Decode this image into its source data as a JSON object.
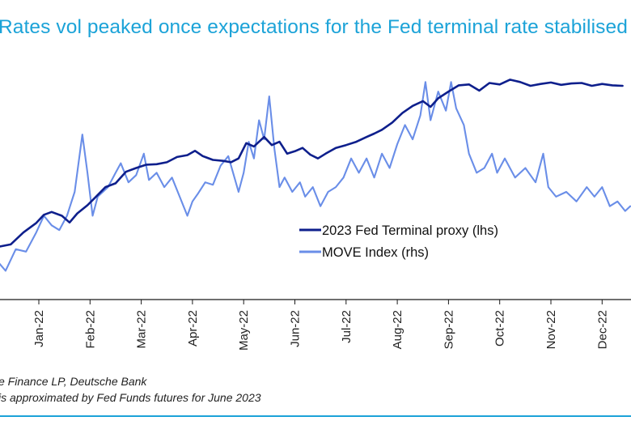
{
  "chart_data": {
    "type": "line",
    "title": "Rates vol peaked once expectations for the Fed terminal rate stabilised",
    "xlabel": "",
    "ylabel": "",
    "categories": [
      "Jan-22",
      "Feb-22",
      "Mar-22",
      "Apr-22",
      "May-22",
      "Jun-22",
      "Jul-22",
      "Aug-22",
      "Sep-22",
      "Oct-22",
      "Nov-22",
      "Dec-22"
    ],
    "x_range": [
      0,
      12.55
    ],
    "lhs_range": [
      0.5,
      5.5
    ],
    "rhs_range": [
      70,
      170
    ],
    "grid": false,
    "legend_position": "center-right",
    "series": [
      {
        "name": "2023 Fed Terminal proxy (lhs)",
        "axis": "lhs",
        "color": "#0e1f8c",
        "points": [
          [
            0.0,
            1.28
          ],
          [
            0.2,
            1.35
          ],
          [
            0.45,
            1.4
          ],
          [
            0.7,
            1.65
          ],
          [
            0.95,
            1.85
          ],
          [
            1.1,
            2.02
          ],
          [
            1.25,
            2.08
          ],
          [
            1.45,
            2.0
          ],
          [
            1.6,
            1.86
          ],
          [
            1.75,
            2.05
          ],
          [
            1.95,
            2.22
          ],
          [
            2.1,
            2.38
          ],
          [
            2.3,
            2.6
          ],
          [
            2.5,
            2.68
          ],
          [
            2.7,
            2.92
          ],
          [
            2.9,
            3.0
          ],
          [
            3.1,
            3.07
          ],
          [
            3.3,
            3.08
          ],
          [
            3.5,
            3.12
          ],
          [
            3.7,
            3.23
          ],
          [
            3.9,
            3.27
          ],
          [
            4.05,
            3.36
          ],
          [
            4.2,
            3.25
          ],
          [
            4.4,
            3.17
          ],
          [
            4.6,
            3.15
          ],
          [
            4.75,
            3.12
          ],
          [
            4.9,
            3.2
          ],
          [
            5.05,
            3.52
          ],
          [
            5.2,
            3.45
          ],
          [
            5.4,
            3.65
          ],
          [
            5.55,
            3.48
          ],
          [
            5.7,
            3.55
          ],
          [
            5.85,
            3.3
          ],
          [
            6.0,
            3.35
          ],
          [
            6.15,
            3.42
          ],
          [
            6.3,
            3.28
          ],
          [
            6.45,
            3.2
          ],
          [
            6.6,
            3.3
          ],
          [
            6.8,
            3.42
          ],
          [
            7.0,
            3.48
          ],
          [
            7.2,
            3.55
          ],
          [
            7.4,
            3.65
          ],
          [
            7.55,
            3.72
          ],
          [
            7.7,
            3.8
          ],
          [
            7.9,
            3.95
          ],
          [
            8.1,
            4.15
          ],
          [
            8.3,
            4.3
          ],
          [
            8.5,
            4.4
          ],
          [
            8.65,
            4.28
          ],
          [
            8.8,
            4.46
          ],
          [
            9.0,
            4.6
          ],
          [
            9.2,
            4.73
          ],
          [
            9.4,
            4.75
          ],
          [
            9.6,
            4.62
          ],
          [
            9.8,
            4.78
          ],
          [
            10.0,
            4.75
          ],
          [
            10.2,
            4.85
          ],
          [
            10.4,
            4.8
          ],
          [
            10.6,
            4.72
          ],
          [
            10.8,
            4.76
          ],
          [
            11.0,
            4.79
          ],
          [
            11.2,
            4.74
          ],
          [
            11.4,
            4.77
          ],
          [
            11.6,
            4.78
          ],
          [
            11.8,
            4.72
          ],
          [
            12.0,
            4.76
          ],
          [
            12.2,
            4.73
          ],
          [
            12.4,
            4.72
          ]
        ]
      },
      {
        "name": "MOVE Index (rhs)",
        "axis": "rhs",
        "color": "#6a8ee8",
        "points": [
          [
            0.0,
            78
          ],
          [
            0.15,
            82
          ],
          [
            0.35,
            77
          ],
          [
            0.55,
            86
          ],
          [
            0.75,
            85
          ],
          [
            0.95,
            93
          ],
          [
            1.1,
            100
          ],
          [
            1.25,
            96
          ],
          [
            1.4,
            94
          ],
          [
            1.55,
            100
          ],
          [
            1.7,
            110
          ],
          [
            1.85,
            134
          ],
          [
            1.95,
            118
          ],
          [
            2.05,
            100
          ],
          [
            2.15,
            108
          ],
          [
            2.35,
            112
          ],
          [
            2.5,
            118
          ],
          [
            2.6,
            122
          ],
          [
            2.75,
            114
          ],
          [
            2.9,
            117
          ],
          [
            3.05,
            126
          ],
          [
            3.15,
            115
          ],
          [
            3.3,
            118
          ],
          [
            3.45,
            112
          ],
          [
            3.6,
            116
          ],
          [
            3.75,
            108
          ],
          [
            3.9,
            100
          ],
          [
            4.0,
            106
          ],
          [
            4.1,
            109
          ],
          [
            4.25,
            114
          ],
          [
            4.4,
            113
          ],
          [
            4.55,
            121
          ],
          [
            4.7,
            125
          ],
          [
            4.9,
            110
          ],
          [
            5.0,
            118
          ],
          [
            5.1,
            131
          ],
          [
            5.2,
            124
          ],
          [
            5.3,
            140
          ],
          [
            5.4,
            132
          ],
          [
            5.5,
            150
          ],
          [
            5.6,
            128
          ],
          [
            5.7,
            112
          ],
          [
            5.8,
            116
          ],
          [
            5.95,
            110
          ],
          [
            6.1,
            114
          ],
          [
            6.2,
            108
          ],
          [
            6.35,
            112
          ],
          [
            6.5,
            104
          ],
          [
            6.65,
            110
          ],
          [
            6.8,
            112
          ],
          [
            6.95,
            116
          ],
          [
            7.1,
            124
          ],
          [
            7.25,
            118
          ],
          [
            7.4,
            124
          ],
          [
            7.55,
            116
          ],
          [
            7.7,
            126
          ],
          [
            7.85,
            120
          ],
          [
            8.0,
            130
          ],
          [
            8.15,
            138
          ],
          [
            8.3,
            132
          ],
          [
            8.45,
            142
          ],
          [
            8.55,
            156
          ],
          [
            8.65,
            140
          ],
          [
            8.8,
            152
          ],
          [
            8.95,
            144
          ],
          [
            9.05,
            156
          ],
          [
            9.15,
            145
          ],
          [
            9.3,
            138
          ],
          [
            9.4,
            126
          ],
          [
            9.55,
            118
          ],
          [
            9.7,
            120
          ],
          [
            9.85,
            126
          ],
          [
            9.95,
            118
          ],
          [
            10.1,
            124
          ],
          [
            10.3,
            116
          ],
          [
            10.5,
            120
          ],
          [
            10.7,
            114
          ],
          [
            10.85,
            126
          ],
          [
            10.95,
            112
          ],
          [
            11.1,
            108
          ],
          [
            11.3,
            110
          ],
          [
            11.5,
            106
          ],
          [
            11.7,
            112
          ],
          [
            11.85,
            108
          ],
          [
            12.0,
            112
          ],
          [
            12.15,
            104
          ],
          [
            12.3,
            106
          ],
          [
            12.45,
            102
          ],
          [
            12.55,
            104
          ]
        ]
      }
    ]
  },
  "notes": {
    "source": "e Finance LP, Deutsche Bank",
    "footnote": "is approximated by Fed Funds futures for June 2023"
  }
}
